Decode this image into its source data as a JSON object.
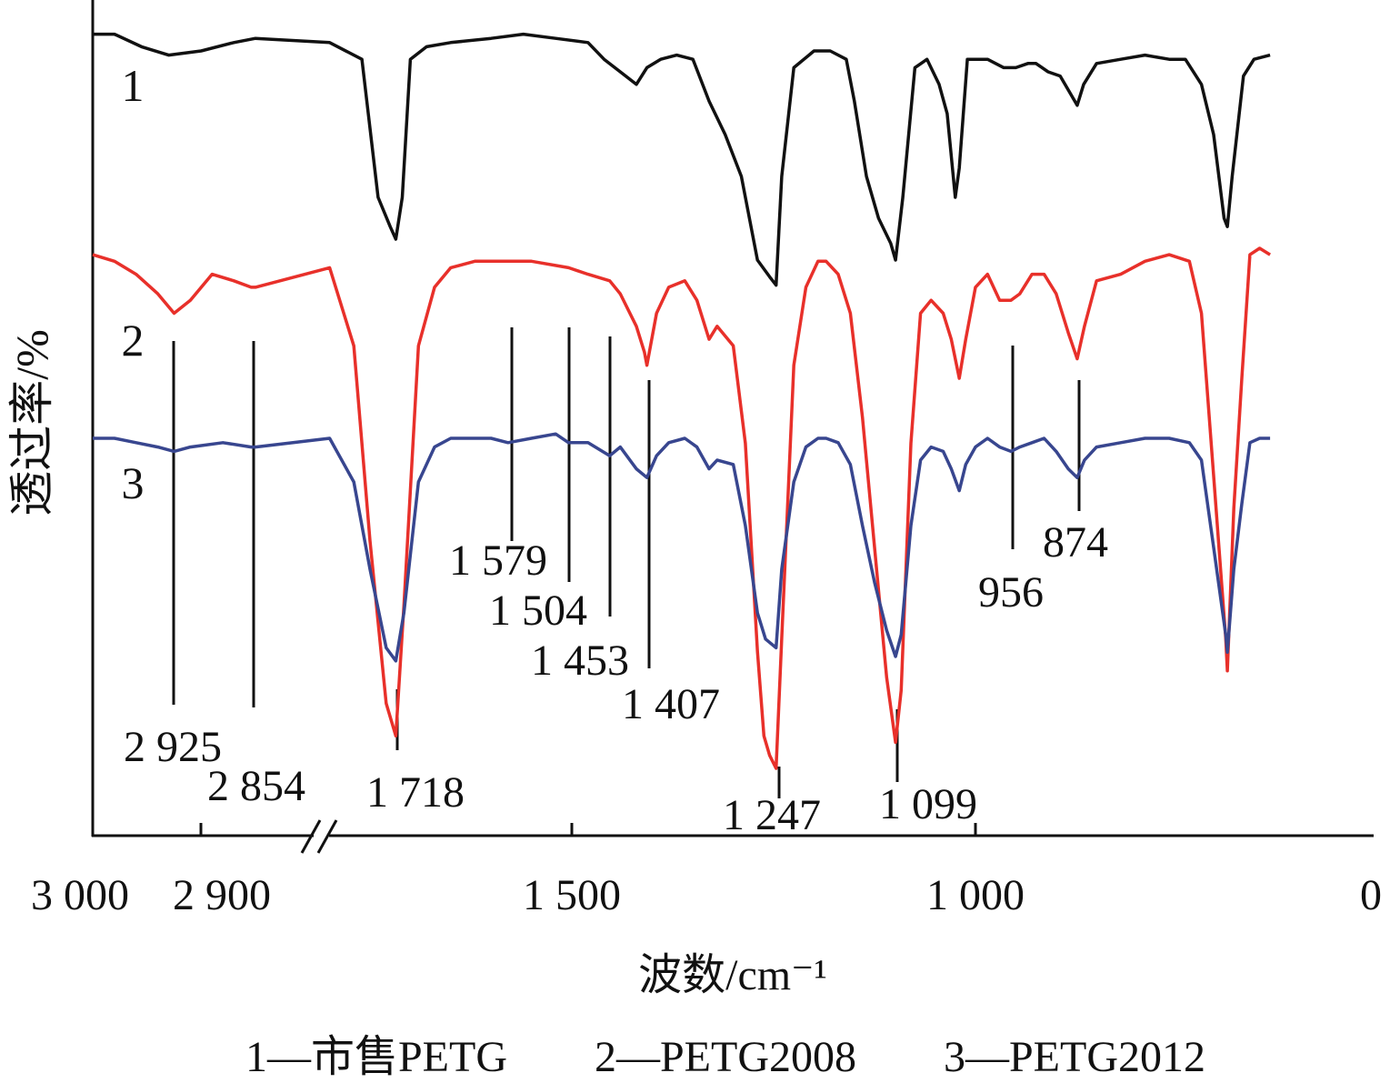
{
  "chart_data": {
    "type": "line",
    "title": "",
    "xlabel": "波数/cm⁻¹",
    "ylabel": "透过率/%",
    "xlim": [
      3000,
      0
    ],
    "x_break": {
      "from": 2850,
      "to": 1800
    },
    "x_ticks": [
      {
        "value": 3000,
        "label": "3 000"
      },
      {
        "value": 2900,
        "label": "2 900"
      },
      {
        "value": 1500,
        "label": "1 500"
      },
      {
        "value": 1000,
        "label": "1 000"
      },
      {
        "value": 0,
        "label": "0"
      }
    ],
    "series": [
      {
        "name": "1",
        "color": "#111111",
        "points": [
          [
            3000,
            94
          ],
          [
            2980,
            94
          ],
          [
            2955,
            91
          ],
          [
            2930,
            89
          ],
          [
            2900,
            90
          ],
          [
            2870,
            92
          ],
          [
            2850,
            93
          ],
          [
            1800,
            92
          ],
          [
            1760,
            88
          ],
          [
            1740,
            55
          ],
          [
            1725,
            48
          ],
          [
            1718,
            45
          ],
          [
            1710,
            55
          ],
          [
            1700,
            88
          ],
          [
            1680,
            91
          ],
          [
            1650,
            92
          ],
          [
            1600,
            93
          ],
          [
            1560,
            94
          ],
          [
            1520,
            93
          ],
          [
            1480,
            92
          ],
          [
            1460,
            88
          ],
          [
            1440,
            85
          ],
          [
            1420,
            82
          ],
          [
            1407,
            86
          ],
          [
            1390,
            88
          ],
          [
            1370,
            89
          ],
          [
            1350,
            88
          ],
          [
            1330,
            78
          ],
          [
            1310,
            70
          ],
          [
            1290,
            60
          ],
          [
            1270,
            40
          ],
          [
            1255,
            36
          ],
          [
            1247,
            34
          ],
          [
            1240,
            60
          ],
          [
            1225,
            86
          ],
          [
            1200,
            90
          ],
          [
            1180,
            90
          ],
          [
            1160,
            88
          ],
          [
            1150,
            78
          ],
          [
            1135,
            60
          ],
          [
            1120,
            50
          ],
          [
            1105,
            44
          ],
          [
            1099,
            40
          ],
          [
            1090,
            55
          ],
          [
            1075,
            86
          ],
          [
            1060,
            88
          ],
          [
            1045,
            82
          ],
          [
            1035,
            75
          ],
          [
            1025,
            55
          ],
          [
            1020,
            62
          ],
          [
            1010,
            88
          ],
          [
            985,
            88
          ],
          [
            965,
            86
          ],
          [
            950,
            86
          ],
          [
            935,
            87
          ],
          [
            925,
            87
          ],
          [
            910,
            85
          ],
          [
            895,
            84
          ],
          [
            880,
            79
          ],
          [
            874,
            77
          ],
          [
            866,
            82
          ],
          [
            850,
            87
          ],
          [
            820,
            88
          ],
          [
            790,
            89
          ],
          [
            760,
            88
          ],
          [
            740,
            88
          ],
          [
            720,
            82
          ],
          [
            705,
            70
          ],
          [
            692,
            50
          ],
          [
            688,
            48
          ],
          [
            682,
            60
          ],
          [
            668,
            84
          ],
          [
            655,
            88
          ],
          [
            635,
            89
          ]
        ],
        "label_position": {
          "x": 2955,
          "y": 82
        }
      },
      {
        "name": "2",
        "color": "#e8302a",
        "points": [
          [
            3000,
            79
          ],
          [
            2980,
            78
          ],
          [
            2960,
            76
          ],
          [
            2940,
            73
          ],
          [
            2925,
            70
          ],
          [
            2910,
            72
          ],
          [
            2890,
            76
          ],
          [
            2870,
            75
          ],
          [
            2854,
            74
          ],
          [
            2850,
            74
          ],
          [
            1800,
            77
          ],
          [
            1770,
            65
          ],
          [
            1750,
            35
          ],
          [
            1730,
            10
          ],
          [
            1718,
            5
          ],
          [
            1708,
            25
          ],
          [
            1690,
            65
          ],
          [
            1670,
            74
          ],
          [
            1650,
            77
          ],
          [
            1620,
            78
          ],
          [
            1579,
            78
          ],
          [
            1550,
            78
          ],
          [
            1504,
            77
          ],
          [
            1480,
            76
          ],
          [
            1453,
            75
          ],
          [
            1440,
            73
          ],
          [
            1420,
            68
          ],
          [
            1410,
            64
          ],
          [
            1407,
            62
          ],
          [
            1395,
            70
          ],
          [
            1380,
            74
          ],
          [
            1360,
            75
          ],
          [
            1345,
            72
          ],
          [
            1330,
            66
          ],
          [
            1320,
            68
          ],
          [
            1300,
            65
          ],
          [
            1285,
            50
          ],
          [
            1270,
            18
          ],
          [
            1262,
            5
          ],
          [
            1255,
            2
          ],
          [
            1247,
            0
          ],
          [
            1240,
            20
          ],
          [
            1225,
            62
          ],
          [
            1210,
            74
          ],
          [
            1195,
            78
          ],
          [
            1185,
            78
          ],
          [
            1170,
            76
          ],
          [
            1155,
            70
          ],
          [
            1140,
            54
          ],
          [
            1125,
            34
          ],
          [
            1110,
            14
          ],
          [
            1099,
            4
          ],
          [
            1092,
            12
          ],
          [
            1080,
            50
          ],
          [
            1068,
            70
          ],
          [
            1055,
            72
          ],
          [
            1040,
            70
          ],
          [
            1030,
            66
          ],
          [
            1020,
            60
          ],
          [
            1012,
            66
          ],
          [
            1000,
            74
          ],
          [
            985,
            76
          ],
          [
            970,
            72
          ],
          [
            956,
            72
          ],
          [
            945,
            73
          ],
          [
            930,
            76
          ],
          [
            915,
            76
          ],
          [
            900,
            73
          ],
          [
            885,
            67
          ],
          [
            874,
            63
          ],
          [
            865,
            68
          ],
          [
            850,
            75
          ],
          [
            820,
            76
          ],
          [
            790,
            78
          ],
          [
            760,
            79
          ],
          [
            735,
            78
          ],
          [
            720,
            70
          ],
          [
            705,
            45
          ],
          [
            690,
            20
          ],
          [
            688,
            15
          ],
          [
            680,
            40
          ],
          [
            670,
            60
          ],
          [
            660,
            79
          ],
          [
            648,
            80
          ],
          [
            635,
            79
          ]
        ],
        "label_position": {
          "x": 2955,
          "y": 66
        }
      },
      {
        "name": "3",
        "color": "#38468f",
        "points": [
          [
            3000,
            60
          ],
          [
            2980,
            60
          ],
          [
            2960,
            59
          ],
          [
            2940,
            58
          ],
          [
            2925,
            57
          ],
          [
            2910,
            58
          ],
          [
            2880,
            59
          ],
          [
            2854,
            58
          ],
          [
            2850,
            58
          ],
          [
            1800,
            60
          ],
          [
            1770,
            50
          ],
          [
            1750,
            30
          ],
          [
            1730,
            12
          ],
          [
            1718,
            9
          ],
          [
            1708,
            20
          ],
          [
            1690,
            50
          ],
          [
            1670,
            58
          ],
          [
            1650,
            60
          ],
          [
            1600,
            60
          ],
          [
            1579,
            59
          ],
          [
            1550,
            60
          ],
          [
            1520,
            61
          ],
          [
            1504,
            59
          ],
          [
            1480,
            59
          ],
          [
            1453,
            56
          ],
          [
            1440,
            58
          ],
          [
            1420,
            53
          ],
          [
            1407,
            51
          ],
          [
            1395,
            56
          ],
          [
            1380,
            59
          ],
          [
            1360,
            60
          ],
          [
            1345,
            58
          ],
          [
            1330,
            53
          ],
          [
            1320,
            55
          ],
          [
            1300,
            54
          ],
          [
            1285,
            40
          ],
          [
            1270,
            20
          ],
          [
            1260,
            14
          ],
          [
            1247,
            12
          ],
          [
            1240,
            30
          ],
          [
            1225,
            50
          ],
          [
            1210,
            58
          ],
          [
            1195,
            60
          ],
          [
            1185,
            60
          ],
          [
            1170,
            59
          ],
          [
            1155,
            54
          ],
          [
            1140,
            40
          ],
          [
            1125,
            27
          ],
          [
            1110,
            16
          ],
          [
            1099,
            10
          ],
          [
            1092,
            15
          ],
          [
            1080,
            40
          ],
          [
            1068,
            55
          ],
          [
            1055,
            58
          ],
          [
            1040,
            57
          ],
          [
            1030,
            53
          ],
          [
            1020,
            48
          ],
          [
            1012,
            54
          ],
          [
            1000,
            58
          ],
          [
            985,
            60
          ],
          [
            970,
            58
          ],
          [
            956,
            57
          ],
          [
            945,
            58
          ],
          [
            930,
            59
          ],
          [
            915,
            60
          ],
          [
            900,
            57
          ],
          [
            885,
            53
          ],
          [
            874,
            51
          ],
          [
            865,
            55
          ],
          [
            850,
            58
          ],
          [
            820,
            59
          ],
          [
            790,
            60
          ],
          [
            760,
            60
          ],
          [
            735,
            59
          ],
          [
            720,
            55
          ],
          [
            705,
            35
          ],
          [
            690,
            15
          ],
          [
            688,
            11
          ],
          [
            680,
            30
          ],
          [
            670,
            45
          ],
          [
            660,
            59
          ],
          [
            648,
            60
          ],
          [
            635,
            60
          ]
        ],
        "label_position": {
          "x": 2955,
          "y": 50
        }
      }
    ],
    "annotations": [
      {
        "label": "2 925",
        "wavenumber": 2925
      },
      {
        "label": "2 854",
        "wavenumber": 2854
      },
      {
        "label": "1 718",
        "wavenumber": 1718
      },
      {
        "label": "1 579",
        "wavenumber": 1579
      },
      {
        "label": "1 504",
        "wavenumber": 1504
      },
      {
        "label": "1 453",
        "wavenumber": 1453
      },
      {
        "label": "1 407",
        "wavenumber": 1407
      },
      {
        "label": "1 247",
        "wavenumber": 1247
      },
      {
        "label": "1 099",
        "wavenumber": 1099
      },
      {
        "label": "956",
        "wavenumber": 956
      },
      {
        "label": "874",
        "wavenumber": 874
      }
    ],
    "legend_text": "1—市售PETG　　2—PETG2008　　3—PETG2012",
    "grid": false
  }
}
